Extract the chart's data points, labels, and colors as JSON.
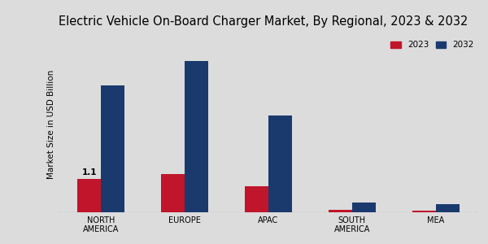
{
  "title": "Electric Vehicle On-Board Charger Market, By Regional, 2023 & 2032",
  "ylabel": "Market Size in USD Billion",
  "regions": [
    "NORTH\nAMERICA",
    "EUROPE",
    "APAC",
    "SOUTH\nAMERICA",
    "MEA"
  ],
  "values_2023": [
    1.1,
    1.25,
    0.85,
    0.07,
    0.05
  ],
  "values_2032": [
    4.2,
    5.0,
    3.2,
    0.32,
    0.28
  ],
  "color_2023": "#c0152a",
  "color_2032": "#1a3a6e",
  "annotation_text": "1.1",
  "background_color": "#dcdcdc",
  "bar_width": 0.28,
  "ylim": [
    0,
    5.8
  ],
  "legend_labels": [
    "2023",
    "2032"
  ],
  "title_fontsize": 10.5,
  "axis_fontsize": 7.5,
  "tick_fontsize": 7,
  "bottom_bar_color": "#c0152a"
}
